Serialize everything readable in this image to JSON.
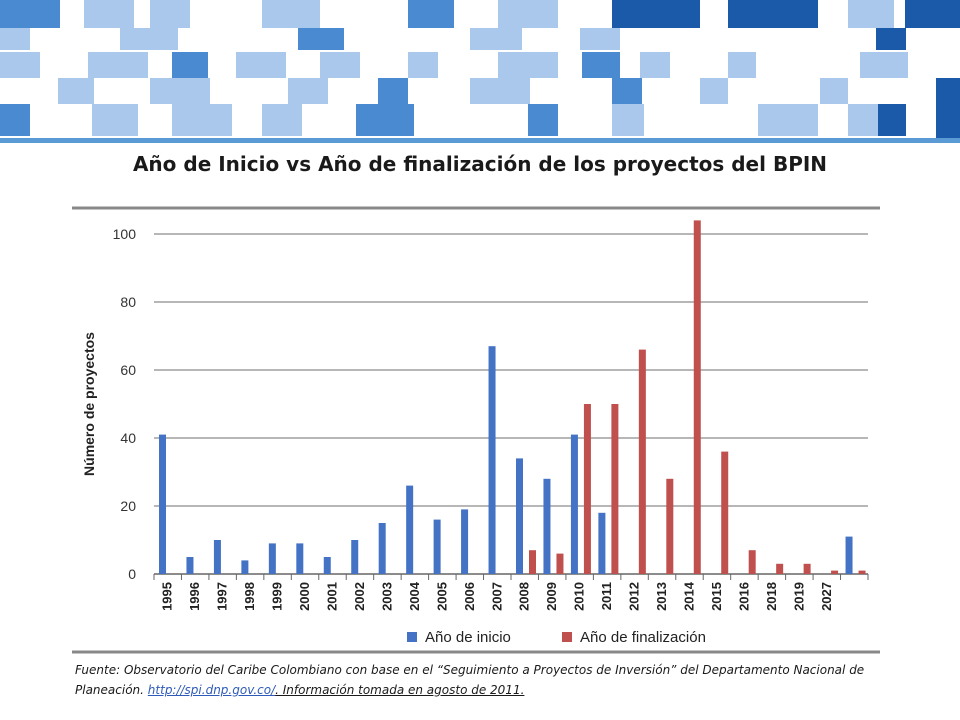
{
  "slide": {
    "title": "Año de Inicio vs Año de finalización de los proyectos del BPIN",
    "source_text": "Fuente: Observatorio del Caribe Colombiano con base en el “Seguimiento a Proyectos de Inversión” del Departamento Nacional de Planeación.",
    "source_link": "http://spi.dnp.gov.co/",
    "source_after": ".  Información tomada en agosto de 2011."
  },
  "colors": {
    "inicio": "#4472c4",
    "finalizacion": "#c0504d",
    "banner_light": "#a9c8ec",
    "banner_mid": "#4a8ad0",
    "banner_dark": "#1a5aa8",
    "accent_line": "#5b9bd5"
  },
  "chart_data": {
    "type": "bar",
    "title": "",
    "ylabel": "Número de proyectos",
    "xlabel": "",
    "ylim": [
      0,
      100
    ],
    "yticks": [
      0,
      20,
      40,
      60,
      80,
      100
    ],
    "grid": true,
    "legend_position": "bottom",
    "categories": [
      "1995",
      "1996",
      "1997",
      "1998",
      "1999",
      "2000",
      "2001",
      "2002",
      "2003",
      "2004",
      "2005",
      "2006",
      "2007",
      "2008",
      "2009",
      "2010",
      "2011",
      "2012",
      "2013",
      "2014",
      "2015",
      "2016",
      "2018",
      "2019",
      "2027",
      ""
    ],
    "series": [
      {
        "name": "Año de inicio",
        "color": "#4472c4",
        "values": [
          41,
          5,
          10,
          4,
          9,
          9,
          5,
          10,
          15,
          26,
          16,
          19,
          67,
          34,
          28,
          41,
          18,
          0,
          0,
          0,
          0,
          0,
          0,
          0,
          0,
          11
        ]
      },
      {
        "name": "Año de finalización",
        "color": "#c0504d",
        "values": [
          0,
          0,
          0,
          0,
          0,
          0,
          0,
          0,
          0,
          0,
          0,
          0,
          0,
          7,
          6,
          50,
          50,
          66,
          28,
          104,
          36,
          7,
          3,
          3,
          1,
          1
        ]
      }
    ]
  }
}
